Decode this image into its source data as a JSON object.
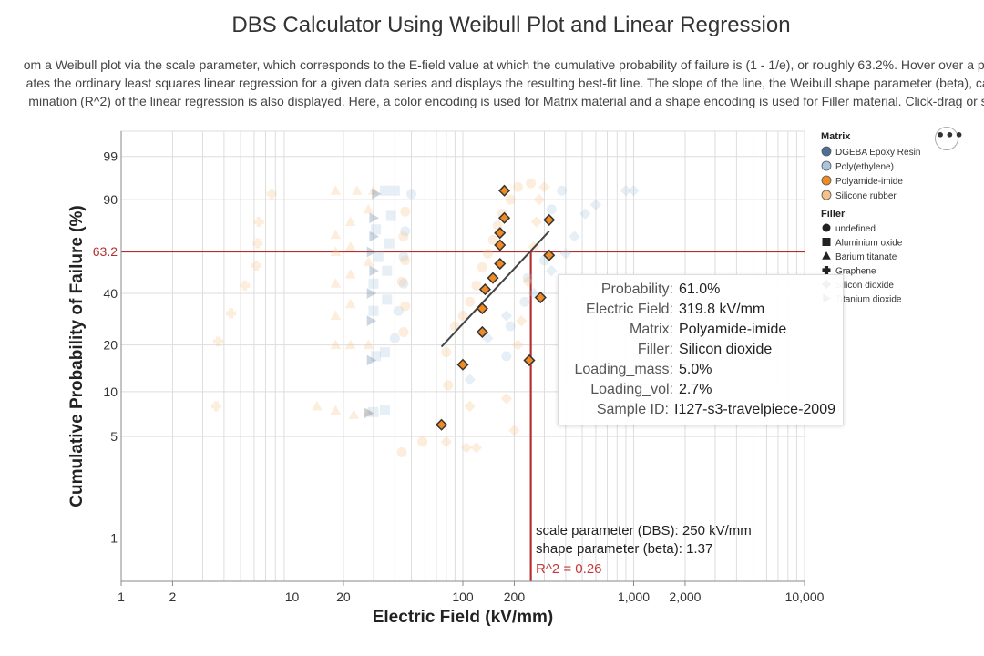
{
  "title": "DBS Calculator Using Weibull Plot and Linear Regression",
  "description": {
    "line1": "om a Weibull plot via the scale parameter, which corresponds to the E-field value at which the cumulative probability of failure is (1 - 1/e), or roughly 63.2%. Hover over a poir",
    "line2": "ates the ordinary least squares linear regression for a given data series and displays the resulting best-fit line. The slope of the line, the Weibull shape parameter (beta), can",
    "line3": "mination (R^2) of the linear regression is also displayed. Here, a color encoding is used for Matrix material and a shape encoding is used for Filler material. Click-drag or sc"
  },
  "menu_glyph": "•••",
  "annotations": {
    "y_ref_label": "63.2",
    "scale_text": "scale parameter (DBS): 250 kV/mm",
    "shape_text": "shape parameter (beta): 1.37",
    "r2_text": "R^2 = 0.26"
  },
  "tooltip": {
    "rows": [
      {
        "key": "Probability:",
        "value": "61.0%"
      },
      {
        "key": "Electric Field:",
        "value": "319.8 kV/mm"
      },
      {
        "key": "Matrix:",
        "value": "Polyamide-imide"
      },
      {
        "key": "Filler:",
        "value": "Silicon dioxide"
      },
      {
        "key": "Loading_mass:",
        "value": "5.0%"
      },
      {
        "key": "Loading_vol:",
        "value": "2.7%"
      },
      {
        "key": "Sample ID:",
        "value": "I127-s3-travelpiece-2009"
      }
    ]
  },
  "legend": {
    "matrix_title": "Matrix",
    "matrix": [
      {
        "label": "DGEBA Epoxy Resin",
        "color": "#4c6f98"
      },
      {
        "label": "Poly(ethylene)",
        "color": "#a9c4e1"
      },
      {
        "label": "Polyamide-imide",
        "color": "#f08a23"
      },
      {
        "label": "Silicone rubber",
        "color": "#f7c289"
      }
    ],
    "filler_title": "Filler",
    "filler": [
      {
        "label": "undefined",
        "shape": "circle"
      },
      {
        "label": "Aluminium oxide",
        "shape": "square"
      },
      {
        "label": "Barium titanate",
        "shape": "triangle"
      },
      {
        "label": "Graphene",
        "shape": "cross"
      },
      {
        "label": "Silicon dioxide",
        "shape": "diamond"
      },
      {
        "label": "Titanium dioxide",
        "shape": "triangle-right"
      }
    ]
  },
  "chart_data": {
    "type": "scatter",
    "title": "DBS Calculator Using Weibull Plot and Linear Regression",
    "xlabel": "Electric Field (kV/mm)",
    "ylabel": "Cumulative Probability of Failure (%)",
    "x_scale": "log",
    "y_scale": "weibull",
    "xlim": [
      1,
      10000
    ],
    "ylim": [
      0.5,
      99.9
    ],
    "x_ticks": [
      1,
      2,
      10,
      20,
      100,
      200,
      1000,
      2000,
      10000
    ],
    "x_tick_labels": [
      "1",
      "2",
      "10",
      "20",
      "100",
      "200",
      "1,000",
      "2,000",
      "10,000"
    ],
    "y_ticks": [
      1,
      5,
      10,
      20,
      40,
      63.2,
      90,
      99
    ],
    "y_tick_labels": [
      "1",
      "5",
      "10",
      "20",
      "40",
      "63.2",
      "90",
      "99"
    ],
    "grid": true,
    "legend_position": "right",
    "reference_lines": {
      "y": 63.2,
      "x": 250
    },
    "fit_line": {
      "x": [
        75,
        250,
        320
      ],
      "y": [
        19.5,
        63.2,
        75
      ]
    },
    "highlighted_series": {
      "matrix": "Polyamide-imide",
      "filler": "Silicon dioxide",
      "color": "#f08a23",
      "shape": "diamond",
      "points": [
        {
          "x": 75,
          "y": 6
        },
        {
          "x": 100,
          "y": 15
        },
        {
          "x": 130,
          "y": 24
        },
        {
          "x": 245,
          "y": 16
        },
        {
          "x": 130,
          "y": 33
        },
        {
          "x": 135,
          "y": 42
        },
        {
          "x": 150,
          "y": 48
        },
        {
          "x": 285,
          "y": 38
        },
        {
          "x": 165,
          "y": 56
        },
        {
          "x": 320,
          "y": 61
        },
        {
          "x": 165,
          "y": 67
        },
        {
          "x": 165,
          "y": 74
        },
        {
          "x": 175,
          "y": 82
        },
        {
          "x": 320,
          "y": 81
        },
        {
          "x": 175,
          "y": 93
        }
      ]
    },
    "background_series": [
      {
        "matrix": "Silicone rubber",
        "filler": "Graphene",
        "color": "#f7c289",
        "shape": "cross",
        "points": [
          {
            "x": 3.6,
            "y": 8
          },
          {
            "x": 3.7,
            "y": 21
          },
          {
            "x": 4.4,
            "y": 31
          },
          {
            "x": 5.3,
            "y": 44
          },
          {
            "x": 6.2,
            "y": 55
          },
          {
            "x": 6.3,
            "y": 68
          },
          {
            "x": 6.4,
            "y": 80
          },
          {
            "x": 7.6,
            "y": 92
          }
        ]
      },
      {
        "matrix": "Silicone rubber",
        "filler": "Barium titanate",
        "color": "#f7c289",
        "shape": "triangle",
        "points": [
          {
            "x": 14,
            "y": 8
          },
          {
            "x": 18,
            "y": 7.5
          },
          {
            "x": 23,
            "y": 7
          },
          {
            "x": 28,
            "y": 7.3
          },
          {
            "x": 18,
            "y": 20
          },
          {
            "x": 22,
            "y": 20
          },
          {
            "x": 28,
            "y": 20
          },
          {
            "x": 18,
            "y": 30
          },
          {
            "x": 22,
            "y": 35
          },
          {
            "x": 18,
            "y": 45
          },
          {
            "x": 22,
            "y": 50
          },
          {
            "x": 28,
            "y": 57
          },
          {
            "x": 18,
            "y": 63
          },
          {
            "x": 22,
            "y": 66
          },
          {
            "x": 18,
            "y": 73
          },
          {
            "x": 22,
            "y": 80
          },
          {
            "x": 28,
            "y": 86
          },
          {
            "x": 18,
            "y": 93
          },
          {
            "x": 24,
            "y": 93
          },
          {
            "x": 30,
            "y": 93
          }
        ]
      },
      {
        "matrix": "Poly(ethylene)",
        "filler": "Aluminium oxide",
        "color": "#a9c4e1",
        "shape": "square",
        "points": [
          {
            "x": 30,
            "y": 7.3
          },
          {
            "x": 35,
            "y": 7.6
          },
          {
            "x": 31,
            "y": 17
          },
          {
            "x": 35,
            "y": 18
          },
          {
            "x": 30,
            "y": 32
          },
          {
            "x": 36,
            "y": 37
          },
          {
            "x": 30,
            "y": 45
          },
          {
            "x": 36,
            "y": 52
          },
          {
            "x": 32,
            "y": 60
          },
          {
            "x": 37,
            "y": 68
          },
          {
            "x": 31,
            "y": 76
          },
          {
            "x": 38,
            "y": 83
          },
          {
            "x": 35,
            "y": 93
          },
          {
            "x": 40,
            "y": 93
          }
        ]
      },
      {
        "matrix": "DGEBA Epoxy Resin",
        "filler": "Titanium dioxide",
        "color": "#4c6f98",
        "shape": "triangle-right",
        "points": [
          {
            "x": 28,
            "y": 7.2
          },
          {
            "x": 29,
            "y": 16
          },
          {
            "x": 29,
            "y": 28
          },
          {
            "x": 29,
            "y": 40
          },
          {
            "x": 30,
            "y": 52
          },
          {
            "x": 29,
            "y": 63
          },
          {
            "x": 30,
            "y": 72
          },
          {
            "x": 30,
            "y": 82
          },
          {
            "x": 31,
            "y": 92
          }
        ]
      },
      {
        "matrix": "Poly(ethylene)",
        "filler": "undefined",
        "color": "#a9c4e1",
        "shape": "circle",
        "points": [
          {
            "x": 40,
            "y": 22
          },
          {
            "x": 42,
            "y": 32
          },
          {
            "x": 45,
            "y": 45
          },
          {
            "x": 45,
            "y": 60
          },
          {
            "x": 46,
            "y": 75
          },
          {
            "x": 50,
            "y": 92
          },
          {
            "x": 180,
            "y": 17
          },
          {
            "x": 190,
            "y": 26
          },
          {
            "x": 230,
            "y": 36
          },
          {
            "x": 240,
            "y": 48
          },
          {
            "x": 300,
            "y": 58
          },
          {
            "x": 330,
            "y": 86
          },
          {
            "x": 380,
            "y": 93
          }
        ]
      },
      {
        "matrix": "Silicone rubber",
        "filler": "undefined",
        "color": "#f7c289",
        "shape": "circle",
        "points": [
          {
            "x": 44,
            "y": 3.9
          },
          {
            "x": 58,
            "y": 4.6
          },
          {
            "x": 82,
            "y": 11
          },
          {
            "x": 80,
            "y": 18
          },
          {
            "x": 90,
            "y": 26
          },
          {
            "x": 100,
            "y": 30
          },
          {
            "x": 110,
            "y": 36
          },
          {
            "x": 120,
            "y": 44
          },
          {
            "x": 130,
            "y": 54
          },
          {
            "x": 140,
            "y": 62
          },
          {
            "x": 150,
            "y": 70
          },
          {
            "x": 160,
            "y": 78
          },
          {
            "x": 170,
            "y": 84
          },
          {
            "x": 190,
            "y": 90
          },
          {
            "x": 210,
            "y": 94
          },
          {
            "x": 250,
            "y": 95
          },
          {
            "x": 45,
            "y": 24
          },
          {
            "x": 46,
            "y": 34
          },
          {
            "x": 44,
            "y": 46
          },
          {
            "x": 46,
            "y": 58
          },
          {
            "x": 45,
            "y": 72
          },
          {
            "x": 46,
            "y": 85
          }
        ]
      },
      {
        "matrix": "Poly(ethylene)",
        "filler": "Silicon dioxide",
        "color": "#a9c4e1",
        "shape": "diamond",
        "points": [
          {
            "x": 110,
            "y": 12
          },
          {
            "x": 140,
            "y": 22
          },
          {
            "x": 180,
            "y": 30
          },
          {
            "x": 260,
            "y": 40
          },
          {
            "x": 330,
            "y": 52
          },
          {
            "x": 400,
            "y": 62
          },
          {
            "x": 450,
            "y": 72
          },
          {
            "x": 520,
            "y": 84
          },
          {
            "x": 600,
            "y": 88
          },
          {
            "x": 900,
            "y": 93
          },
          {
            "x": 1000,
            "y": 93
          }
        ]
      },
      {
        "matrix": "Silicone rubber",
        "filler": "Silicon dioxide",
        "color": "#f7c289",
        "shape": "diamond",
        "points": [
          {
            "x": 80,
            "y": 4.6
          },
          {
            "x": 105,
            "y": 4.2
          },
          {
            "x": 120,
            "y": 4.2
          },
          {
            "x": 110,
            "y": 8
          },
          {
            "x": 180,
            "y": 9
          },
          {
            "x": 200,
            "y": 5.5
          },
          {
            "x": 210,
            "y": 20
          },
          {
            "x": 220,
            "y": 28
          },
          {
            "x": 240,
            "y": 46
          },
          {
            "x": 260,
            "y": 66
          },
          {
            "x": 270,
            "y": 80
          },
          {
            "x": 280,
            "y": 90
          },
          {
            "x": 300,
            "y": 94
          }
        ]
      }
    ]
  }
}
